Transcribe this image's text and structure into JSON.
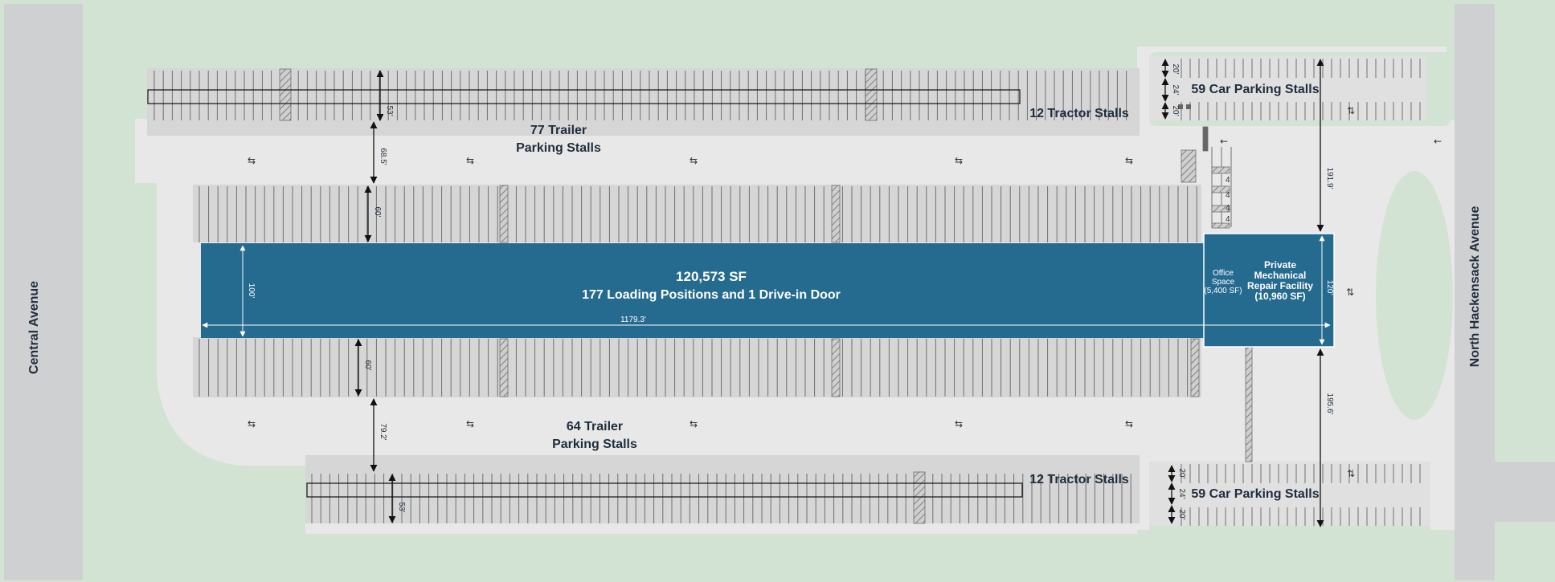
{
  "roads": {
    "left": "Central Avenue",
    "right": "North Hackensack Avenue"
  },
  "building": {
    "area": "120,573 SF",
    "loading": "177 Loading Positions and 1 Drive-in Door",
    "length_dim": "1179.3'",
    "depth_dim": "100'",
    "annex_depth_dim": "120'",
    "office_line1": "Office",
    "office_line2": "Space",
    "office_line3": "(5,400 SF)",
    "repair_line1": "Private",
    "repair_line2": "Mechanical",
    "repair_line3": "Repair Facility",
    "repair_line4": "(10,960 SF)"
  },
  "parking": {
    "north_trailer_line1": "77 Trailer",
    "north_trailer_line2": "Parking Stalls",
    "south_trailer_line1": "64 Trailer",
    "south_trailer_line2": "Parking Stalls",
    "north_tractor": "12 Tractor Stalls",
    "south_tractor": "12 Tractor Stalls",
    "north_car": "59 Car Parking Stalls",
    "south_car": "59 Car Parking Stalls"
  },
  "dimensions": {
    "north_stall_depth": "53'",
    "north_drive_aisle": "68.5'",
    "north_truck_court": "60'",
    "south_truck_court": "60'",
    "south_drive_aisle": "79.2'",
    "south_stall_depth": "53'",
    "north_setback": "191.9'",
    "south_setback": "195.6'",
    "car_stall_a": "20'",
    "car_aisle": "24'",
    "car_stall_b": "20'",
    "car_stall_c": "20'",
    "car_aisle_s": "24'",
    "car_stall_d": "20'"
  },
  "accessible_marks": [
    "4",
    "4",
    "4",
    "4"
  ],
  "flow_arrows": {
    "two_way": "⇆",
    "north_south": "⇅",
    "left": "←"
  },
  "colors": {
    "grass": "#d3e3d3",
    "road": "#cfd0d2",
    "pavement": "#e8e8e8",
    "stalls": "#d6d6d6",
    "building": "#256a8f"
  }
}
